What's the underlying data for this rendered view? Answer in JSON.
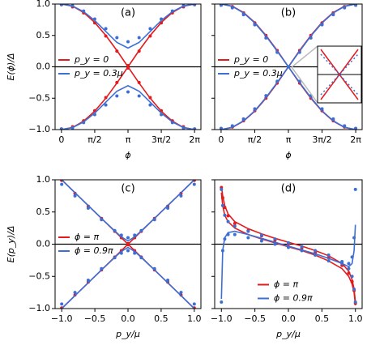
{
  "chart_data": [
    {
      "type": "line",
      "label": "(a)",
      "xlabel": "ϕ",
      "ylabel": "E(ϕ)/Δ",
      "legend": "center left",
      "x": [
        0,
        0.524,
        1.047,
        1.571,
        2.094,
        2.618,
        3.1416,
        3.665,
        4.189,
        4.712,
        5.236,
        5.76,
        6.283
      ],
      "xlim": [
        -0.3,
        6.583
      ],
      "ylim": [
        -1,
        1
      ],
      "xticks": [
        {
          "value": 0,
          "label": "0"
        },
        {
          "value": 1.5708,
          "label": "π/2"
        },
        {
          "value": 3.1416,
          "label": "π"
        },
        {
          "value": 4.7124,
          "label": "3π/2"
        },
        {
          "value": 6.2832,
          "label": "2π"
        }
      ],
      "yticks": [
        {
          "value": -1,
          "label": "−1.0"
        },
        {
          "value": -0.5,
          "label": "−0.5"
        },
        {
          "value": 0,
          "label": "0.0"
        },
        {
          "value": 0.5,
          "label": "0.5"
        },
        {
          "value": 1,
          "label": "1.0"
        }
      ],
      "hlines": [
        0
      ],
      "series": [
        {
          "name": "p_y = 0",
          "color": "#e41a1c",
          "style": "line",
          "values": [
            1,
            0.966,
            0.866,
            0.707,
            0.5,
            0.259,
            0,
            0.259,
            0.5,
            0.707,
            0.866,
            0.966,
            1
          ]
        },
        {
          "color": "#e41a1c",
          "style": "line",
          "values": [
            -1,
            -0.966,
            -0.866,
            -0.707,
            -0.5,
            -0.259,
            0,
            -0.259,
            -0.5,
            -0.707,
            -0.866,
            -0.966,
            -1
          ]
        },
        {
          "color": "#e41a1c",
          "style": "dots",
          "values": [
            0.99,
            0.955,
            0.86,
            0.7,
            0.49,
            0.25,
            0.02,
            0.25,
            0.49,
            0.7,
            0.86,
            0.955,
            0.99
          ]
        },
        {
          "color": "#e41a1c",
          "style": "dots",
          "values": [
            -0.99,
            -0.955,
            -0.86,
            -0.7,
            -0.49,
            -0.25,
            -0.02,
            -0.25,
            -0.49,
            -0.7,
            -0.86,
            -0.955,
            -0.99
          ]
        },
        {
          "name": "p_y = 0.3μ",
          "color": "#3b6fd6",
          "style": "line",
          "values": [
            1,
            0.969,
            0.879,
            0.738,
            0.564,
            0.389,
            0.3,
            0.389,
            0.564,
            0.738,
            0.879,
            0.969,
            1
          ]
        },
        {
          "color": "#3b6fd6",
          "style": "line",
          "values": [
            -1,
            -0.969,
            -0.879,
            -0.738,
            -0.564,
            -0.389,
            -0.3,
            -0.389,
            -0.564,
            -0.738,
            -0.879,
            -0.969,
            -1
          ]
        },
        {
          "color": "#3b6fd6",
          "style": "dots",
          "values": [
            0.99,
            0.972,
            0.889,
            0.762,
            0.608,
            0.465,
            0.4,
            0.465,
            0.608,
            0.762,
            0.889,
            0.972,
            0.99
          ]
        },
        {
          "color": "#3b6fd6",
          "style": "dots",
          "values": [
            -0.99,
            -0.972,
            -0.889,
            -0.762,
            -0.608,
            -0.465,
            -0.4,
            -0.465,
            -0.608,
            -0.762,
            -0.889,
            -0.972,
            -0.99
          ]
        }
      ]
    },
    {
      "type": "line",
      "label": "(b)",
      "xlabel": "ϕ",
      "legend": "center left",
      "x": [
        0,
        0.524,
        1.047,
        1.571,
        2.094,
        2.618,
        3.1416,
        3.665,
        4.189,
        4.712,
        5.236,
        5.76,
        6.283
      ],
      "xlim": [
        -0.3,
        6.583
      ],
      "ylim": [
        -1,
        1
      ],
      "xticks": [
        {
          "value": 0,
          "label": "0"
        },
        {
          "value": 1.5708,
          "label": "π/2"
        },
        {
          "value": 3.1416,
          "label": "π"
        },
        {
          "value": 4.7124,
          "label": "3π/2"
        },
        {
          "value": 6.2832,
          "label": "2π"
        }
      ],
      "yticks": [
        -1,
        -0.5,
        0,
        0.5,
        1
      ],
      "hlines": [
        0
      ],
      "series": [
        {
          "name": "p_y = 0",
          "color": "#e41a1c",
          "style": "line",
          "values": [
            1,
            0.966,
            0.866,
            0.707,
            0.5,
            0.259,
            0,
            -0.259,
            -0.5,
            -0.707,
            -0.866,
            -0.966,
            -1
          ]
        },
        {
          "color": "#e41a1c",
          "style": "line",
          "values": [
            -1,
            -0.966,
            -0.866,
            -0.707,
            -0.5,
            -0.259,
            0,
            0.259,
            0.5,
            0.707,
            0.866,
            0.966,
            1
          ]
        },
        {
          "color": "#e41a1c",
          "style": "dots",
          "values": [
            0.99,
            0.96,
            0.86,
            0.7,
            0.5,
            0.26,
            0,
            -0.26,
            -0.5,
            -0.7,
            -0.86,
            -0.96,
            -0.99
          ]
        },
        {
          "color": "#e41a1c",
          "style": "dots",
          "values": [
            -0.99,
            -0.96,
            -0.86,
            -0.7,
            -0.5,
            -0.26,
            0,
            0.26,
            0.5,
            0.7,
            0.86,
            0.96,
            0.99
          ]
        },
        {
          "name": "p_y = 0.3μ",
          "color": "#3b6fd6",
          "style": "line",
          "values": [
            1,
            0.963,
            0.86,
            0.7,
            0.49,
            0.25,
            0,
            -0.25,
            -0.49,
            -0.7,
            -0.86,
            -0.963,
            -1
          ]
        },
        {
          "color": "#3b6fd6",
          "style": "line",
          "values": [
            -1,
            -0.963,
            -0.86,
            -0.7,
            -0.49,
            -0.25,
            0,
            0.25,
            0.49,
            0.7,
            0.86,
            0.963,
            1
          ]
        },
        {
          "color": "#3b6fd6",
          "style": "dots",
          "values": [
            0.98,
            0.94,
            0.83,
            0.67,
            0.46,
            0.23,
            0,
            -0.23,
            -0.46,
            -0.67,
            -0.83,
            -0.94,
            -0.98
          ]
        },
        {
          "color": "#3b6fd6",
          "style": "dots",
          "values": [
            -0.98,
            -0.94,
            -0.83,
            -0.67,
            -0.46,
            -0.23,
            0,
            0.23,
            0.46,
            0.67,
            0.83,
            0.94,
            0.98
          ]
        }
      ]
    },
    {
      "type": "line",
      "label": "(c)",
      "xlabel": "p_y/μ",
      "ylabel": "E(p_y)/Δ",
      "legend": "center left",
      "x": [
        -1,
        -0.8,
        -0.6,
        -0.4,
        -0.2,
        -0.1,
        0,
        0.1,
        0.2,
        0.4,
        0.6,
        0.8,
        1
      ],
      "xlim": [
        -1.1,
        1.1
      ],
      "ylim": [
        -1,
        1
      ],
      "xticks": [
        {
          "value": -1,
          "label": "−1.0"
        },
        {
          "value": -0.5,
          "label": "−0.5"
        },
        {
          "value": 0,
          "label": "0.0"
        },
        {
          "value": 0.5,
          "label": "0.5"
        },
        {
          "value": 1,
          "label": "1.0"
        }
      ],
      "yticks": [
        {
          "value": -1,
          "label": "−1.0"
        },
        {
          "value": -0.5,
          "label": "−0.5"
        },
        {
          "value": 0,
          "label": "0.0"
        },
        {
          "value": 0.5,
          "label": "0.5"
        },
        {
          "value": 1,
          "label": "1.0"
        }
      ],
      "hlines": [
        0
      ],
      "series": [
        {
          "name": "ϕ = π",
          "color": "#e41a1c",
          "style": "line",
          "values": [
            1,
            0.8,
            0.6,
            0.4,
            0.2,
            0.1,
            0,
            -0.1,
            -0.2,
            -0.4,
            -0.6,
            -0.8,
            -1
          ]
        },
        {
          "color": "#e41a1c",
          "style": "line",
          "values": [
            -1,
            -0.8,
            -0.6,
            -0.4,
            -0.2,
            -0.1,
            0,
            0.1,
            0.2,
            0.4,
            0.6,
            0.8,
            1
          ]
        },
        {
          "color": "#e41a1c",
          "style": "dots",
          "values": [
            0.99,
            0.79,
            0.59,
            0.4,
            0.2,
            0.1,
            0.01,
            0.1,
            0.2,
            0.4,
            0.59,
            0.79,
            0.99
          ]
        },
        {
          "color": "#e41a1c",
          "style": "dots",
          "values": [
            -0.99,
            -0.79,
            -0.59,
            -0.4,
            -0.2,
            -0.1,
            -0.01,
            -0.1,
            -0.2,
            -0.4,
            -0.59,
            -0.79,
            -0.99
          ]
        },
        {
          "name": "ϕ = 0.9π",
          "color": "#3b6fd6",
          "style": "line",
          "values": [
            1,
            0.8,
            0.6,
            0.4,
            0.206,
            0.112,
            0.05,
            0.112,
            0.206,
            0.4,
            0.6,
            0.8,
            1
          ]
        },
        {
          "color": "#3b6fd6",
          "style": "line",
          "values": [
            -1,
            -0.8,
            -0.6,
            -0.4,
            -0.206,
            -0.112,
            -0.05,
            -0.112,
            -0.206,
            -0.4,
            -0.6,
            -0.8,
            -1
          ]
        },
        {
          "color": "#3b6fd6",
          "style": "dots",
          "values": [
            0.93,
            0.75,
            0.56,
            0.38,
            0.21,
            0.14,
            0.1,
            0.14,
            0.21,
            0.38,
            0.56,
            0.75,
            0.93
          ]
        },
        {
          "color": "#3b6fd6",
          "style": "dots",
          "values": [
            -0.93,
            -0.75,
            -0.56,
            -0.38,
            -0.21,
            -0.14,
            -0.1,
            -0.14,
            -0.21,
            -0.38,
            -0.56,
            -0.75,
            -0.93
          ]
        }
      ]
    },
    {
      "type": "line",
      "label": "(d)",
      "xlabel": "p_y/μ",
      "legend": "lower center",
      "x": [
        -1,
        -0.98,
        -0.95,
        -0.9,
        -0.8,
        -0.6,
        -0.4,
        -0.2,
        0,
        0.2,
        0.4,
        0.6,
        0.8,
        0.9,
        0.95,
        0.98,
        1
      ],
      "xlim": [
        -1.1,
        1.1
      ],
      "ylim": [
        -1,
        1
      ],
      "xticks": [
        {
          "value": -1,
          "label": "−1.0"
        },
        {
          "value": -0.5,
          "label": "−0.5"
        },
        {
          "value": 0,
          "label": "0.0"
        },
        {
          "value": 0.5,
          "label": "0.5"
        },
        {
          "value": 1,
          "label": "1.0"
        }
      ],
      "yticks": [
        -1,
        -0.5,
        0,
        0.5,
        1
      ],
      "hlines": [
        0
      ],
      "series": [
        {
          "name": "ϕ = π",
          "color": "#e41a1c",
          "style": "line",
          "values": [
            0.9,
            0.75,
            0.6,
            0.47,
            0.35,
            0.24,
            0.16,
            0.09,
            0.03,
            -0.03,
            -0.1,
            -0.18,
            -0.3,
            -0.42,
            -0.55,
            -0.7,
            -0.9
          ]
        },
        {
          "color": "#e41a1c",
          "style": "line",
          "values": [
            0.8,
            0.6,
            0.45,
            0.35,
            0.25,
            0.15,
            0.08,
            0.02,
            -0.04,
            -0.1,
            -0.17,
            -0.26,
            -0.38,
            -0.5,
            -0.62,
            -0.75,
            -0.95
          ]
        },
        {
          "color": "#e41a1c",
          "style": "dots",
          "values": [
            0.88,
            0.72,
            0.57,
            0.44,
            0.32,
            0.21,
            0.13,
            0.06,
            0,
            -0.06,
            -0.13,
            -0.21,
            -0.33,
            -0.45,
            -0.58,
            -0.72,
            -0.92
          ]
        },
        {
          "name": "ϕ = 0.9π",
          "color": "#3b6fd6",
          "style": "line",
          "values": [
            -0.85,
            -0.1,
            0.1,
            0.18,
            0.2,
            0.15,
            0.09,
            0.03,
            -0.03,
            -0.09,
            -0.15,
            -0.22,
            -0.3,
            -0.35,
            -0.3,
            -0.1,
            0.3
          ]
        },
        {
          "color": "#3b6fd6",
          "style": "dots",
          "values": [
            0.85,
            0.6,
            0.45,
            0.35,
            0.28,
            0.2,
            0.14,
            0.08,
            0.02,
            -0.04,
            -0.1,
            -0.17,
            -0.27,
            -0.38,
            -0.5,
            -0.7,
            -0.9
          ]
        },
        {
          "color": "#3b6fd6",
          "style": "dots",
          "values": [
            -0.9,
            -0.1,
            0.08,
            0.15,
            0.15,
            0.1,
            0.05,
            0,
            -0.05,
            -0.1,
            -0.17,
            -0.26,
            -0.3,
            -0.3,
            -0.2,
            0.1,
            0.85
          ]
        }
      ]
    }
  ]
}
